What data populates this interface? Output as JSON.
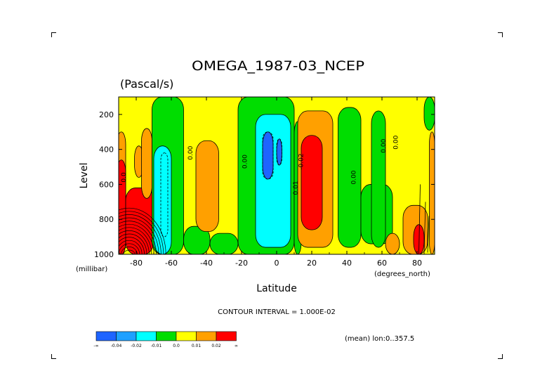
{
  "chart_data": {
    "type": "heatmap",
    "title": "OMEGA_1987-03_NCEP",
    "units": "(Pascal/s)",
    "xlabel": "Latitude",
    "ylabel": "Level",
    "x_unit_label": "(degrees_north)",
    "y_unit_label": "(millibar)",
    "xlim": [
      -90,
      90
    ],
    "ylim": [
      1000,
      100
    ],
    "x_ticks": [
      -80,
      -60,
      -40,
      -20,
      0,
      20,
      40,
      60,
      80
    ],
    "x_tick_labels": [
      "-80",
      "-60",
      "-40",
      "-20",
      "0",
      "20",
      "40",
      "60",
      "80"
    ],
    "y_ticks": [
      200,
      400,
      600,
      800,
      1000
    ],
    "y_tick_labels": [
      "200",
      "400",
      "600",
      "800",
      "1000"
    ],
    "contour_interval_text": "CONTOUR INTERVAL = 1.000E-02",
    "mean_text": "(mean) lon:0..357.5",
    "contour_labels": [
      {
        "text": "0.00",
        "lat": -48,
        "lev": 420
      },
      {
        "text": "0.00",
        "lat": -17,
        "lev": 470
      },
      {
        "text": "-0.02",
        "lat": 15,
        "lev": 470
      },
      {
        "text": "0.01",
        "lat": 12,
        "lev": 620
      },
      {
        "text": "0.00",
        "lat": 45,
        "lev": 560
      },
      {
        "text": "0.00",
        "lat": 62,
        "lev": 380
      },
      {
        "text": "0.00",
        "lat": 69,
        "lev": 360
      },
      {
        "text": "0.0",
        "lat": -86,
        "lev": 560
      }
    ],
    "legend": {
      "colors": [
        "#1E64FF",
        "#1EA0FF",
        "#00FFFF",
        "#00DD00",
        "#FFFF00",
        "#FFA000",
        "#FF0000"
      ],
      "labels": [
        "-∞",
        "-0.04",
        "-0.02",
        "-0.01",
        "0.0",
        "0.01",
        "0.02",
        "∞"
      ]
    },
    "regions": [
      {
        "band": "yellow",
        "lat": [
          -90,
          90
        ],
        "lev": [
          100,
          1000
        ]
      },
      {
        "band": "orange",
        "lat": [
          -91,
          -86
        ],
        "lev": [
          300,
          1000
        ]
      },
      {
        "band": "red",
        "lat": [
          -91,
          -86
        ],
        "lev": [
          460,
          1000
        ]
      },
      {
        "band": "red",
        "lat": [
          -86,
          -70
        ],
        "lev": [
          620,
          1000
        ]
      },
      {
        "band": "orange",
        "lat": [
          -81,
          -76
        ],
        "lev": [
          380,
          560
        ]
      },
      {
        "band": "orange",
        "lat": [
          -77,
          -71
        ],
        "lev": [
          280,
          680
        ]
      },
      {
        "band": "green",
        "lat": [
          -71,
          -53
        ],
        "lev": [
          100,
          1000
        ]
      },
      {
        "band": "cyan",
        "lat": [
          -70,
          -60
        ],
        "lev": [
          380,
          1000
        ]
      },
      {
        "band": "green",
        "lat": [
          -53,
          -38
        ],
        "lev": [
          840,
          1000
        ]
      },
      {
        "band": "orange",
        "lat": [
          -46,
          -33
        ],
        "lev": [
          350,
          870
        ]
      },
      {
        "band": "green",
        "lat": [
          -22,
          10
        ],
        "lev": [
          100,
          1000
        ]
      },
      {
        "band": "green",
        "lat": [
          -38,
          -22
        ],
        "lev": [
          880,
          1000
        ]
      },
      {
        "band": "cyan",
        "lat": [
          -12,
          8
        ],
        "lev": [
          200,
          960
        ]
      },
      {
        "band": "blue",
        "lat": [
          -8,
          -2
        ],
        "lev": [
          300,
          570
        ]
      },
      {
        "band": "blue",
        "lat": [
          0,
          3
        ],
        "lev": [
          340,
          490
        ]
      },
      {
        "band": "green",
        "lat": [
          10,
          14
        ],
        "lev": [
          240,
          1000
        ]
      },
      {
        "band": "orange",
        "lat": [
          12,
          32
        ],
        "lev": [
          180,
          960
        ]
      },
      {
        "band": "red",
        "lat": [
          14,
          26
        ],
        "lev": [
          320,
          860
        ]
      },
      {
        "band": "green",
        "lat": [
          35,
          48
        ],
        "lev": [
          160,
          960
        ]
      },
      {
        "band": "green",
        "lat": [
          48,
          66
        ],
        "lev": [
          600,
          940
        ]
      },
      {
        "band": "green",
        "lat": [
          54,
          62
        ],
        "lev": [
          180,
          960
        ]
      },
      {
        "band": "orange",
        "lat": [
          62,
          70
        ],
        "lev": [
          880,
          1000
        ]
      },
      {
        "band": "orange",
        "lat": [
          72,
          86
        ],
        "lev": [
          720,
          1000
        ]
      },
      {
        "band": "red",
        "lat": [
          78,
          84
        ],
        "lev": [
          830,
          1000
        ]
      },
      {
        "band": "green",
        "lat": [
          84,
          90
        ],
        "lev": [
          100,
          290
        ]
      },
      {
        "band": "orange",
        "lat": [
          87,
          90
        ],
        "lev": [
          300,
          1000
        ]
      }
    ]
  }
}
